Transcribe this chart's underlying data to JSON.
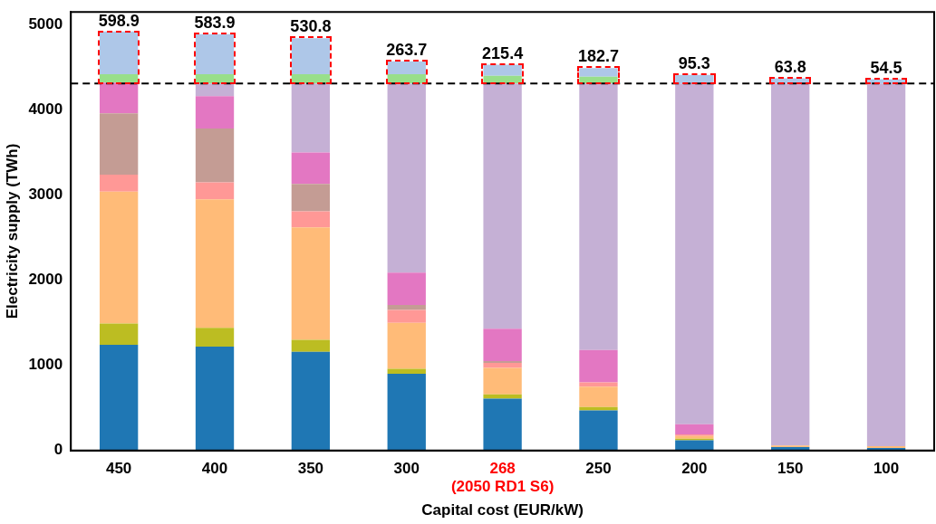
{
  "chart_data": {
    "type": "bar",
    "stacked": true,
    "xlabel": "Capital cost (EUR/kW)",
    "ylabel": "Electricity supply (TWh)",
    "categories": [
      "450",
      "400",
      "350",
      "300",
      "268\n(2050 RD1 S6)",
      "250",
      "200",
      "150",
      "100"
    ],
    "series": [
      {
        "color": "#1f77b4",
        "values": [
          1240,
          1220,
          1160,
          900,
          610,
          470,
          120,
          40,
          30
        ]
      },
      {
        "color": "#bcbd22",
        "values": [
          250,
          220,
          140,
          60,
          50,
          40,
          20,
          0,
          0
        ]
      },
      {
        "color": "#ffbb78",
        "values": [
          1550,
          1510,
          1320,
          540,
          310,
          240,
          30,
          20,
          20
        ]
      },
      {
        "color": "#ff9896",
        "values": [
          200,
          200,
          190,
          150,
          60,
          50,
          20,
          0,
          0
        ]
      },
      {
        "color": "#c49c94",
        "values": [
          720,
          630,
          320,
          60,
          20,
          0,
          0,
          0,
          0
        ]
      },
      {
        "color": "#e377c2",
        "values": [
          360,
          380,
          370,
          380,
          380,
          380,
          120,
          0,
          0
        ]
      },
      {
        "color": "#c5b0d5",
        "values": [
          0,
          150,
          810,
          2220,
          2880,
          3130,
          4000,
          4250,
          4260
        ]
      },
      {
        "color": "#98df8a",
        "values": [
          100,
          110,
          110,
          110,
          90,
          80,
          0,
          0,
          0
        ]
      },
      {
        "color": "#aec7e8",
        "values": [
          500,
          470,
          420,
          150,
          130,
          100,
          100,
          60,
          50
        ]
      }
    ],
    "ylim": [
      0,
      5150
    ],
    "yticks": [
      0,
      1000,
      2000,
      3000,
      4000,
      5000
    ],
    "grid": false,
    "legend": false,
    "ref_lines": [
      {
        "axis": "y",
        "value": 4310,
        "color": "#000000",
        "line_style": "dashed"
      }
    ],
    "annotations": [
      {
        "text": "598.9",
        "x": "450",
        "y": 4910
      },
      {
        "text": "583.9",
        "x": "400",
        "y": 4890
      },
      {
        "text": "530.8",
        "x": "350",
        "y": 4840
      },
      {
        "text": "263.7",
        "x": "300",
        "y": 4570
      },
      {
        "text": "215.4",
        "x": "268\n(2050 RD1 S6)",
        "y": 4530
      },
      {
        "text": "182.7",
        "x": "250",
        "y": 4490
      },
      {
        "text": "95.3",
        "x": "200",
        "y": 4410
      },
      {
        "text": "63.8",
        "x": "150",
        "y": 4370
      },
      {
        "text": "54.5",
        "x": "100",
        "y": 4360
      }
    ]
  }
}
